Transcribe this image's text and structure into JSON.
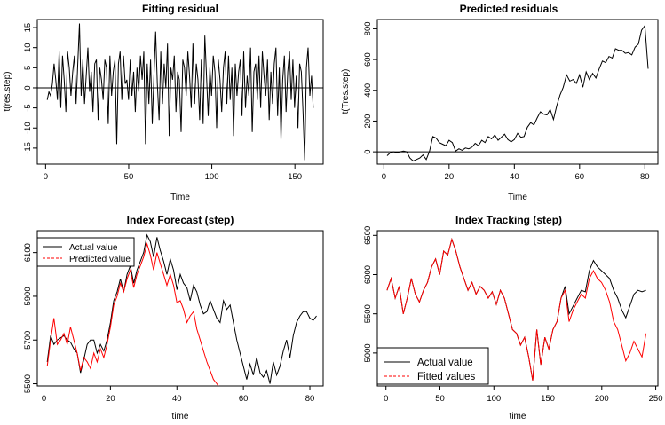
{
  "chart_data": [
    {
      "id": "p1",
      "type": "line",
      "title": "Fitting residual",
      "xlabel": "Time",
      "ylabel": "t(res.step)",
      "xlim": [
        -5,
        167
      ],
      "ylim": [
        -19,
        17
      ],
      "xticks": [
        0,
        50,
        100,
        150
      ],
      "yticks": [
        -15,
        -10,
        -5,
        0,
        5,
        10,
        15
      ],
      "hline": 0,
      "series": [
        {
          "name": "residual",
          "color": "#000000",
          "y": [
            -3,
            -1,
            -2,
            1,
            6,
            2,
            -3,
            9,
            -5,
            8,
            2,
            -6,
            9,
            5,
            -2,
            4,
            8,
            -4,
            6,
            16,
            -2,
            7,
            -4,
            3,
            10,
            -1,
            4,
            -6,
            6,
            7,
            -8,
            5,
            2,
            -3,
            7,
            5,
            -9,
            8,
            -2,
            4,
            7,
            -14,
            6,
            9,
            -3,
            8,
            1,
            2,
            -3,
            7,
            -2,
            4,
            -6,
            5,
            -1,
            8,
            2,
            9,
            -14,
            6,
            -4,
            7,
            -9,
            3,
            14,
            1,
            -8,
            9,
            -4,
            6,
            0,
            11,
            -12,
            5,
            2,
            8,
            -6,
            4,
            2,
            -11,
            7,
            5,
            -2,
            9,
            3,
            -5,
            11,
            -4,
            6,
            2,
            -8,
            7,
            -9,
            13,
            3,
            -7,
            5,
            -2,
            8,
            4,
            -10,
            7,
            2,
            -6,
            5,
            9,
            -4,
            8,
            -3,
            5,
            -12,
            6,
            -2,
            4,
            7,
            -7,
            9,
            -5,
            3,
            -2,
            10,
            -11,
            4,
            6,
            -3,
            8,
            -5,
            9,
            3,
            -2,
            7,
            -8,
            4,
            -4,
            6,
            10,
            -7,
            5,
            -13,
            2,
            8,
            -6,
            4,
            9,
            -3,
            7,
            -5,
            3,
            -10,
            6,
            4,
            -6,
            -18,
            5,
            10,
            -2,
            3,
            -5
          ]
        }
      ]
    },
    {
      "id": "p2",
      "type": "line",
      "title": "Predicted residuals",
      "xlabel": "Time",
      "ylabel": "t(Tres.step)",
      "xlim": [
        -2,
        84
      ],
      "ylim": [
        -80,
        860
      ],
      "xticks": [
        0,
        20,
        40,
        60,
        80
      ],
      "yticks": [
        0,
        200,
        400,
        600,
        800
      ],
      "hline": 0,
      "series": [
        {
          "name": "predicted residual",
          "color": "#000000",
          "y": [
            -25,
            -5,
            0,
            -5,
            0,
            5,
            0,
            -40,
            -60,
            -50,
            -40,
            -20,
            -50,
            5,
            100,
            90,
            60,
            50,
            40,
            75,
            60,
            5,
            20,
            10,
            25,
            20,
            30,
            55,
            40,
            75,
            60,
            100,
            85,
            110,
            75,
            95,
            115,
            80,
            65,
            80,
            120,
            95,
            100,
            160,
            190,
            175,
            220,
            260,
            245,
            240,
            275,
            210,
            300,
            370,
            420,
            500,
            460,
            470,
            445,
            500,
            420,
            520,
            470,
            510,
            480,
            540,
            590,
            580,
            620,
            610,
            670,
            660,
            660,
            640,
            645,
            630,
            680,
            700,
            790,
            820,
            540
          ]
        }
      ]
    },
    {
      "id": "p3",
      "type": "line",
      "title": "Index Forecast (step)",
      "xlabel": "time",
      "ylabel": "",
      "xlim": [
        -2,
        84
      ],
      "ylim": [
        5490,
        6200
      ],
      "xticks": [
        0,
        20,
        40,
        60,
        80
      ],
      "yticks": [
        5500,
        5700,
        5900,
        6100
      ],
      "legend": "top-left",
      "series": [
        {
          "name": "Actual value",
          "color": "#000000",
          "dash": "solid",
          "y": [
            5600,
            5720,
            5680,
            5700,
            5710,
            5720,
            5700,
            5690,
            5660,
            5640,
            5550,
            5610,
            5680,
            5700,
            5700,
            5640,
            5680,
            5650,
            5700,
            5780,
            5880,
            5920,
            5980,
            5920,
            6000,
            6040,
            5960,
            6020,
            6060,
            6100,
            6180,
            6150,
            6080,
            6170,
            6110,
            6060,
            6000,
            6070,
            6020,
            5930,
            6000,
            5960,
            5940,
            5880,
            5950,
            5920,
            5860,
            5820,
            5830,
            5880,
            5840,
            5800,
            5780,
            5880,
            5840,
            5860,
            5780,
            5700,
            5640,
            5580,
            5520,
            5590,
            5540,
            5620,
            5550,
            5530,
            5560,
            5500,
            5600,
            5540,
            5580,
            5650,
            5700,
            5620,
            5720,
            5780,
            5810,
            5830,
            5830,
            5800,
            5790,
            5810
          ]
        },
        {
          "name": "Predicted value",
          "color": "#ff0000",
          "dash": "solid",
          "y": [
            5580,
            5700,
            5800,
            5680,
            5700,
            5730,
            5680,
            5760,
            5700,
            5640,
            5560,
            5620,
            5600,
            5570,
            5640,
            5600,
            5660,
            5620,
            5680,
            5760,
            5860,
            5900,
            5960,
            5920,
            5980,
            6020,
            5940,
            6000,
            6040,
            6080,
            6140,
            6090,
            6020,
            6100,
            6050,
            6000,
            5950,
            6000,
            5950,
            5870,
            5880,
            5840,
            5780,
            5810,
            5830,
            5750,
            5700,
            5650,
            5600,
            5560,
            5520,
            5500,
            5480
          ]
        }
      ]
    },
    {
      "id": "p4",
      "type": "line",
      "title": "Index Tracking (step)",
      "xlabel": "time",
      "ylabel": "",
      "xlim": [
        -8,
        252
      ],
      "ylim": [
        4580,
        6560
      ],
      "xticks": [
        0,
        50,
        100,
        150,
        200,
        250
      ],
      "yticks": [
        5000,
        5500,
        6000,
        6500
      ],
      "legend": "bottom-left",
      "series": [
        {
          "name": "Actual value",
          "color": "#000000",
          "dash": "solid",
          "y": [
            5800,
            5950,
            5700,
            5850,
            5500,
            5700,
            5950,
            5750,
            5650,
            5800,
            5900,
            6100,
            6200,
            6000,
            6300,
            6250,
            6450,
            6300,
            6100,
            5950,
            5800,
            5900,
            5750,
            5850,
            5800,
            5700,
            5780,
            5620,
            5800,
            5700,
            5500,
            5300,
            5250,
            5100,
            5200,
            4950,
            4650,
            5300,
            4850,
            5200,
            5050,
            5300,
            5400,
            5700,
            5850,
            5500,
            5600,
            5700,
            5800,
            5780,
            6050,
            6180,
            6100,
            6050,
            6000,
            5950,
            5800,
            5700,
            5550,
            5450,
            5600,
            5750,
            5800,
            5780,
            5800
          ]
        },
        {
          "name": "Fitted values",
          "color": "#ff0000",
          "dash": "dashed",
          "y": [
            5800,
            5950,
            5700,
            5850,
            5500,
            5700,
            5950,
            5750,
            5650,
            5800,
            5900,
            6100,
            6200,
            6000,
            6300,
            6250,
            6450,
            6300,
            6100,
            5950,
            5800,
            5900,
            5750,
            5850,
            5800,
            5700,
            5780,
            5620,
            5800,
            5700,
            5500,
            5300,
            5250,
            5100,
            5200,
            4950,
            4650,
            5300,
            4850,
            5200,
            5050,
            5300,
            5400,
            5700,
            5800,
            5400,
            5550,
            5650,
            5750,
            5700,
            5950,
            6050,
            5950,
            5900,
            5800,
            5650,
            5400,
            5300,
            5100,
            4900,
            5000,
            5150,
            5050,
            4950,
            5250
          ]
        }
      ]
    }
  ]
}
